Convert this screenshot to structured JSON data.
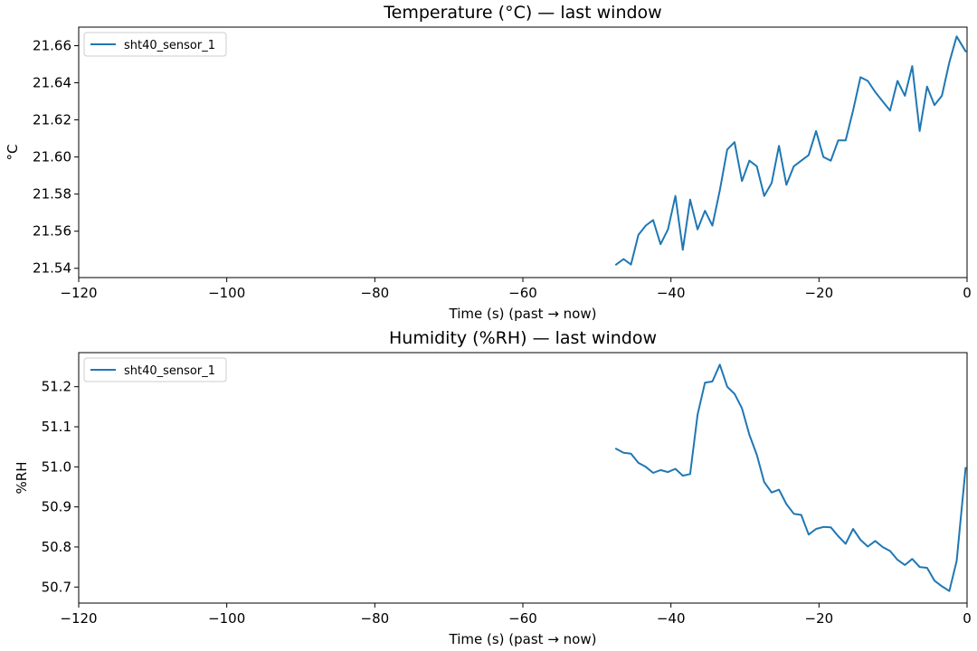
{
  "chart_data": [
    {
      "type": "line",
      "title": "Temperature (°C) — last window",
      "xlabel": "Time (s) (past → now)",
      "ylabel": "°C",
      "xlim": [
        -120,
        0
      ],
      "ylim": [
        21.535,
        21.67
      ],
      "xticks": [
        -120,
        -100,
        -80,
        -60,
        -40,
        -20,
        0
      ],
      "xtick_labels": [
        "−120",
        "−100",
        "−80",
        "−60",
        "−40",
        "−20",
        "0"
      ],
      "yticks": [
        21.54,
        21.56,
        21.58,
        21.6,
        21.62,
        21.64,
        21.66
      ],
      "ytick_labels": [
        "21.54",
        "21.56",
        "21.58",
        "21.60",
        "21.62",
        "21.64",
        "21.66"
      ],
      "grid": false,
      "legend_position": "upper left",
      "series": [
        {
          "name": "sht40_sensor_1",
          "color": "#1f77b4",
          "x": [
            -47.4,
            -46.4,
            -45.4,
            -44.4,
            -43.4,
            -42.4,
            -41.4,
            -40.4,
            -39.4,
            -38.4,
            -37.4,
            -36.4,
            -35.4,
            -34.4,
            -33.4,
            -32.4,
            -31.4,
            -30.4,
            -29.4,
            -28.4,
            -27.4,
            -26.4,
            -25.4,
            -24.4,
            -23.4,
            -22.4,
            -21.4,
            -20.4,
            -19.4,
            -18.4,
            -17.4,
            -16.4,
            -15.4,
            -14.4,
            -13.4,
            -12.4,
            -11.4,
            -10.4,
            -9.4,
            -8.4,
            -7.4,
            -6.4,
            -5.4,
            -4.4,
            -3.4,
            -2.4,
            -1.4,
            -0.2
          ],
          "y": [
            21.542,
            21.545,
            21.542,
            21.558,
            21.563,
            21.566,
            21.553,
            21.561,
            21.579,
            21.55,
            21.577,
            21.561,
            21.571,
            21.563,
            21.582,
            21.604,
            21.608,
            21.587,
            21.598,
            21.595,
            21.579,
            21.586,
            21.606,
            21.585,
            21.595,
            21.598,
            21.601,
            21.614,
            21.6,
            21.598,
            21.609,
            21.609,
            21.625,
            21.643,
            21.641,
            21.635,
            21.63,
            21.625,
            21.641,
            21.633,
            21.649,
            21.614,
            21.638,
            21.628,
            21.633,
            21.651,
            21.665,
            21.657
          ]
        }
      ]
    },
    {
      "type": "line",
      "title": "Humidity (%RH) — last window",
      "xlabel": "Time (s) (past → now)",
      "ylabel": "%RH",
      "xlim": [
        -120,
        0
      ],
      "ylim": [
        50.66,
        51.285
      ],
      "xticks": [
        -120,
        -100,
        -80,
        -60,
        -40,
        -20,
        0
      ],
      "xtick_labels": [
        "−120",
        "−100",
        "−80",
        "−60",
        "−40",
        "−20",
        "0"
      ],
      "yticks": [
        50.7,
        50.8,
        50.9,
        51.0,
        51.1,
        51.2
      ],
      "ytick_labels": [
        "50.7",
        "50.8",
        "50.9",
        "51.0",
        "51.1",
        "51.2"
      ],
      "grid": false,
      "legend_position": "upper left",
      "series": [
        {
          "name": "sht40_sensor_1",
          "color": "#1f77b4",
          "x": [
            -47.4,
            -46.4,
            -45.4,
            -44.4,
            -43.4,
            -42.4,
            -41.4,
            -40.4,
            -39.4,
            -38.4,
            -37.4,
            -36.4,
            -35.4,
            -34.4,
            -33.4,
            -32.4,
            -31.4,
            -30.4,
            -29.4,
            -28.4,
            -27.4,
            -26.4,
            -25.4,
            -24.4,
            -23.4,
            -22.4,
            -21.4,
            -20.4,
            -19.4,
            -18.4,
            -17.4,
            -16.4,
            -15.4,
            -14.4,
            -13.4,
            -12.4,
            -11.4,
            -10.4,
            -9.4,
            -8.4,
            -7.4,
            -6.4,
            -5.4,
            -4.4,
            -3.4,
            -2.4,
            -1.4,
            -0.2
          ],
          "y": [
            51.045,
            51.035,
            51.033,
            51.01,
            51.0,
            50.985,
            50.992,
            50.987,
            50.995,
            50.978,
            50.982,
            51.13,
            51.21,
            51.213,
            51.255,
            51.2,
            51.182,
            51.146,
            51.08,
            51.03,
            50.962,
            50.936,
            50.943,
            50.907,
            50.883,
            50.88,
            50.831,
            50.845,
            50.85,
            50.849,
            50.827,
            50.808,
            50.845,
            50.818,
            50.801,
            50.815,
            50.8,
            50.79,
            50.768,
            50.755,
            50.77,
            50.75,
            50.748,
            50.716,
            50.702,
            50.69,
            50.765,
            50.997
          ]
        }
      ]
    }
  ]
}
